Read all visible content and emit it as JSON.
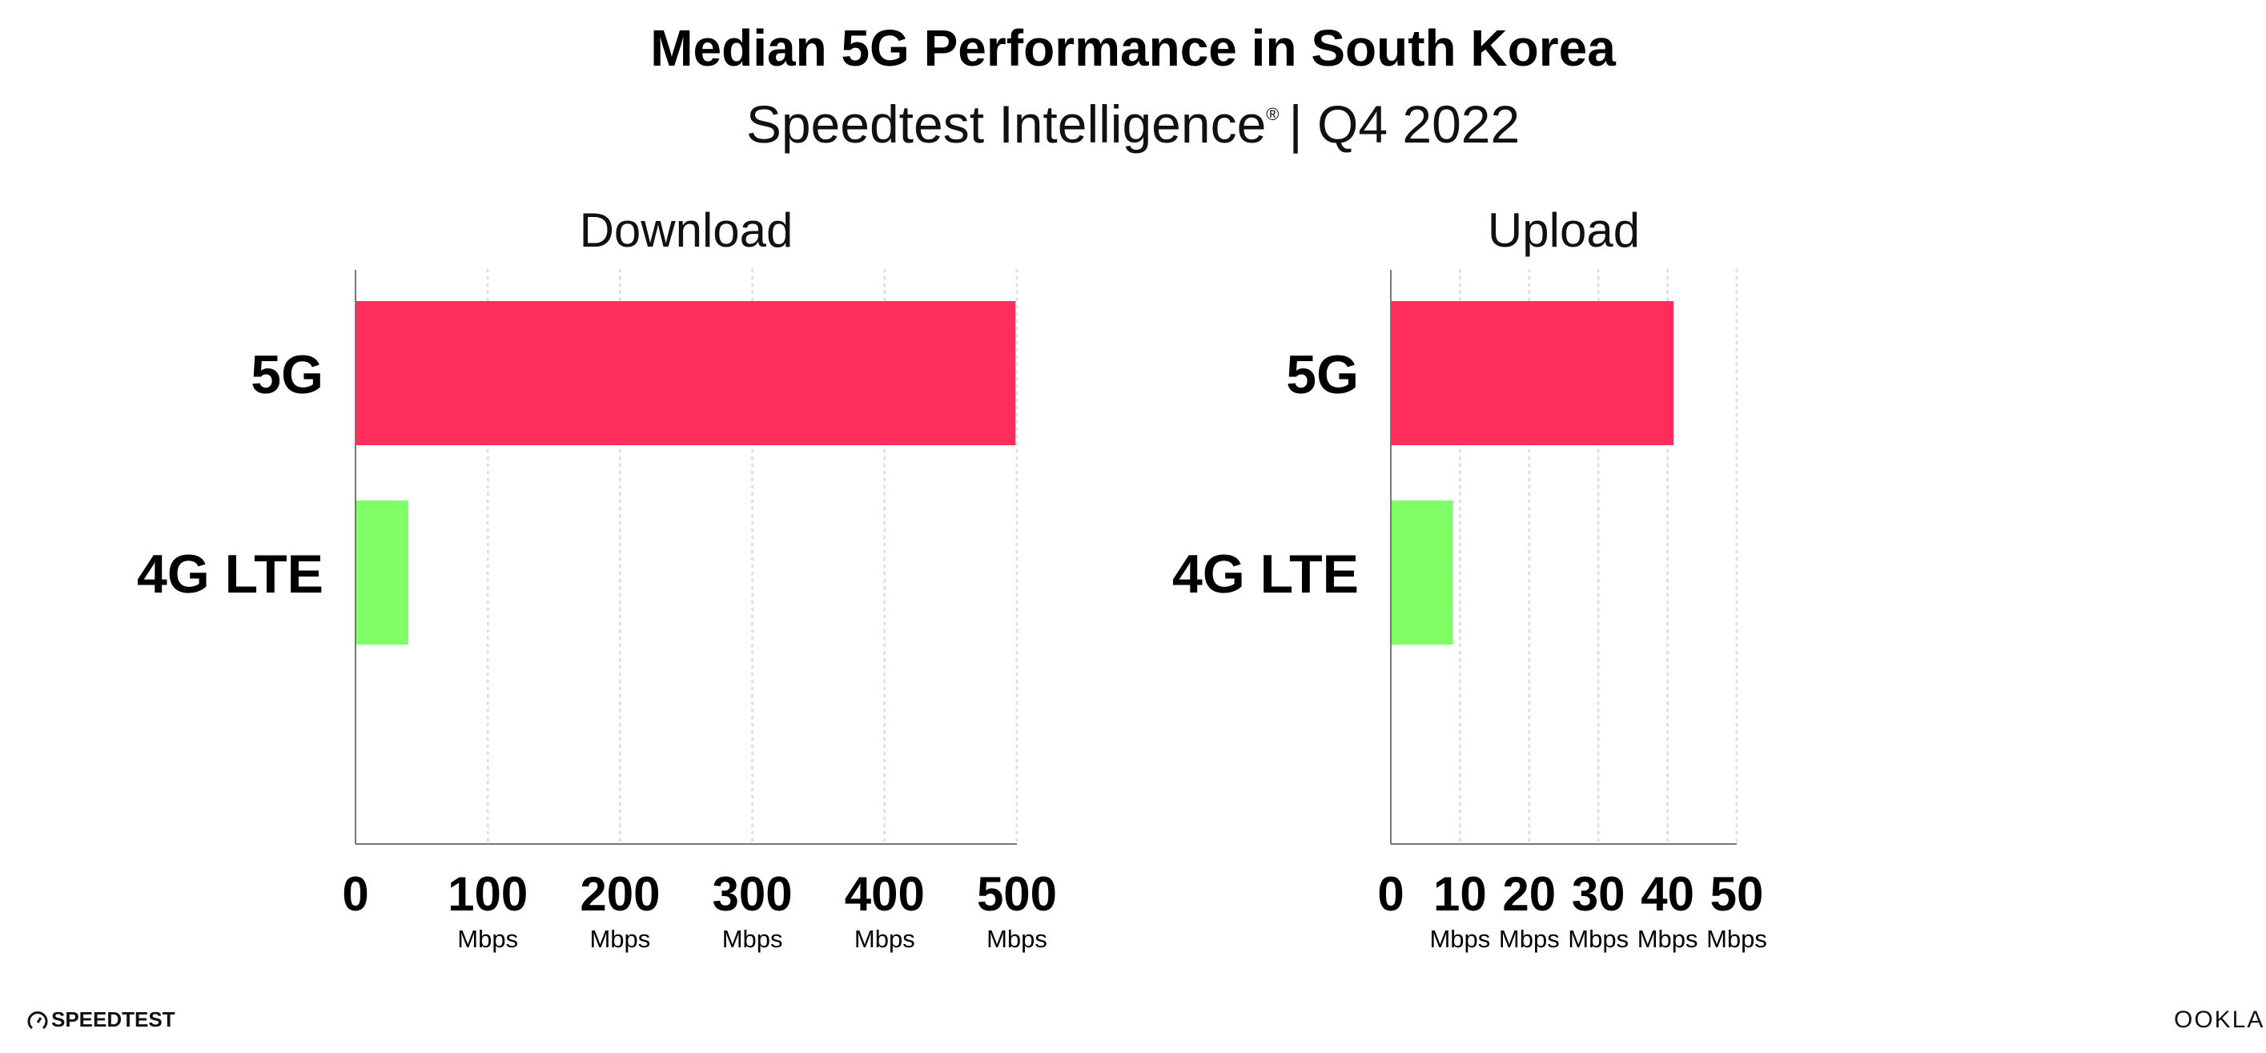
{
  "header": {
    "title": "Median 5G Performance in South Korea",
    "subtitle_brand": "Speedtest Intelligence",
    "subtitle_reg": "®",
    "subtitle_period": "| Q4 2022"
  },
  "colors": {
    "5G": "#ff2d5c",
    "4G LTE": "#80ff66",
    "axis": "#777777",
    "grid": "#dde0ea"
  },
  "chart_data": [
    {
      "type": "bar",
      "orientation": "horizontal",
      "title": "Download",
      "categories": [
        "5G",
        "4G LTE"
      ],
      "values": [
        499,
        40
      ],
      "xlim": [
        0,
        500
      ],
      "ticks": [
        "0",
        "100",
        "200",
        "300",
        "400",
        "500"
      ],
      "tick_values": [
        0,
        100,
        200,
        300,
        400,
        500
      ],
      "tick_unit": "Mbps",
      "grid": true
    },
    {
      "type": "bar",
      "orientation": "horizontal",
      "title": "Upload",
      "categories": [
        "5G",
        "4G LTE"
      ],
      "values": [
        40.9,
        9.0
      ],
      "xlim": [
        0,
        50
      ],
      "ticks": [
        "0",
        "10",
        "20",
        "30",
        "40",
        "50"
      ],
      "tick_values": [
        0,
        10,
        20,
        30,
        40,
        50
      ],
      "tick_unit": "Mbps",
      "grid": true
    }
  ],
  "footer": {
    "left_logo": "SPEEDTEST",
    "right_logo": "OOKLA",
    "left_icon": "speedometer-icon"
  }
}
